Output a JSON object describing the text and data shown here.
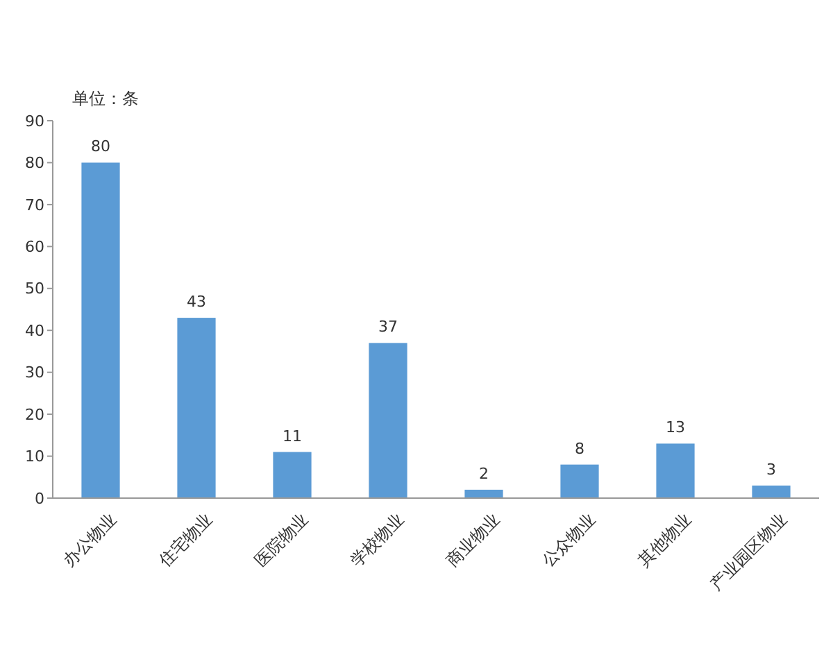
{
  "chart_data": {
    "type": "bar",
    "ylabel": "单位：条",
    "categories": [
      "办公物业",
      "住宅物业",
      "医院物业",
      "学校物业",
      "商业物业",
      "公众物业",
      "其他物业",
      "产业园区物业"
    ],
    "values": [
      80,
      43,
      11,
      37,
      2,
      8,
      13,
      3
    ],
    "color": "#5b9bd5",
    "ylim": [
      0,
      90
    ],
    "yticks": [
      0,
      10,
      20,
      30,
      40,
      50,
      60,
      70,
      80,
      90
    ],
    "data_labels": true
  }
}
